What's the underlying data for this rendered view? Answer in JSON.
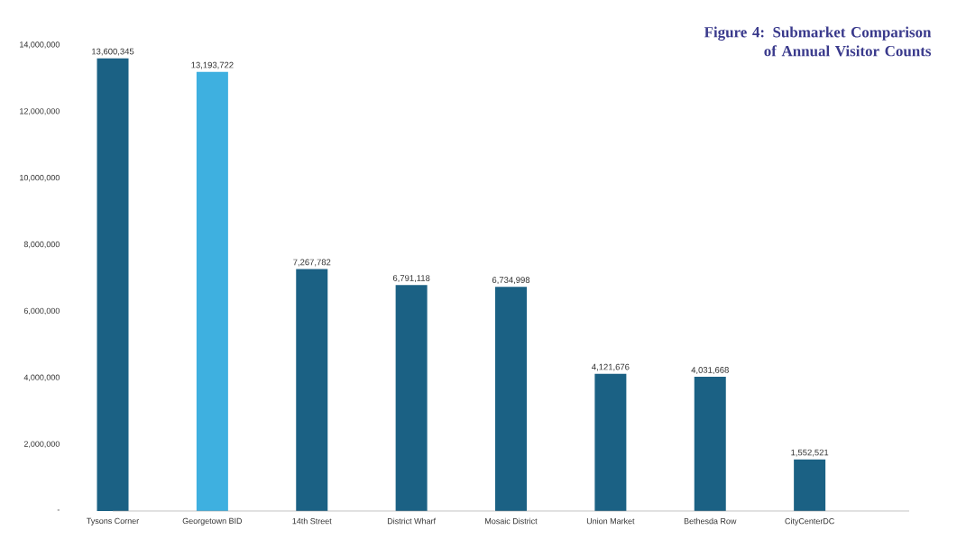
{
  "chart_data": {
    "type": "bar",
    "title": "Figure 4: Submarket Comparison of Annual Visitor Counts",
    "categories": [
      "Tysons Corner",
      "Georgetown BID",
      "14th Street",
      "District Wharf",
      "Mosaic District",
      "Union Market",
      "Bethesda Row",
      "CityCenterDC"
    ],
    "values": [
      13600345,
      13193722,
      7267782,
      6791118,
      6734998,
      4121676,
      4031668,
      1552521
    ],
    "value_labels": [
      "13,600,345",
      "13,193,722",
      "7,267,782",
      "6,791,118",
      "6,734,998",
      "4,121,676",
      "4,031,668",
      "1,552,521"
    ],
    "colors": [
      "#1b6184",
      "#3eb0e0",
      "#1b6184",
      "#1b6184",
      "#1b6184",
      "#1b6184",
      "#1b6184",
      "#1b6184"
    ],
    "ylim": [
      0,
      14000000
    ],
    "yticks": [
      {
        "value": 0,
        "label": "-"
      },
      {
        "value": 2000000,
        "label": "2,000,000"
      },
      {
        "value": 4000000,
        "label": "4,000,000"
      },
      {
        "value": 6000000,
        "label": "6,000,000"
      },
      {
        "value": 8000000,
        "label": "8,000,000"
      },
      {
        "value": 10000000,
        "label": "10,000,000"
      },
      {
        "value": 12000000,
        "label": "12,000,000"
      },
      {
        "value": 14000000,
        "label": "14,000,000"
      }
    ],
    "grid": false
  }
}
